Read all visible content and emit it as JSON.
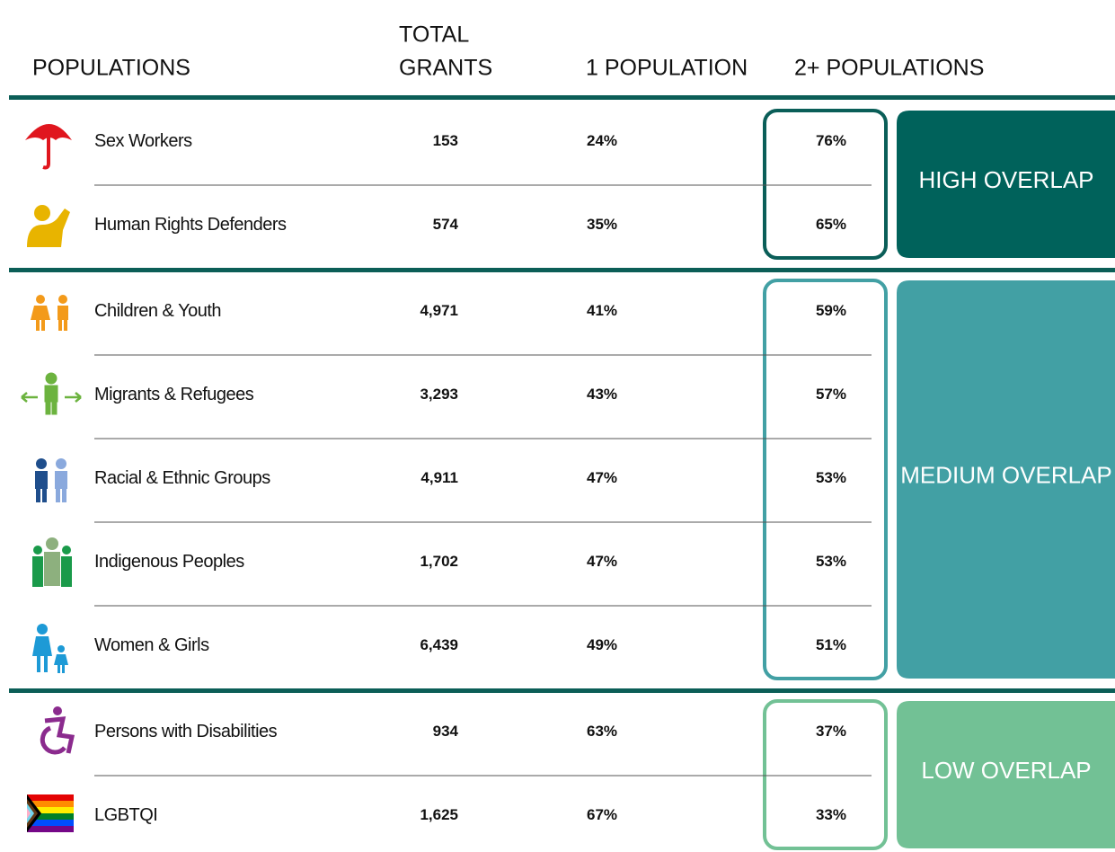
{
  "header": {
    "populations": "POPULATIONS",
    "total_grants": [
      "TOTAL",
      "GRANTS"
    ],
    "one_population": "1 POPULATION",
    "two_plus_populations": "2+ POPULATIONS"
  },
  "groups": [
    {
      "label": "HIGH OVERLAP",
      "rows": [
        {
          "name": "Sex Workers",
          "total": "153",
          "one": "24%",
          "two": "76%"
        },
        {
          "name": "Human Rights Defenders",
          "total": "574",
          "one": "35%",
          "two": "65%"
        }
      ]
    },
    {
      "label": "MEDIUM OVERLAP",
      "rows": [
        {
          "name": "Children & Youth",
          "total": "4,971",
          "one": "41%",
          "two": "59%"
        },
        {
          "name": "Migrants & Refugees",
          "total": "3,293",
          "one": "43%",
          "two": "57%"
        },
        {
          "name": "Racial & Ethnic Groups",
          "total": "4,911",
          "one": "47%",
          "two": "53%"
        },
        {
          "name": "Indigenous Peoples",
          "total": "1,702",
          "one": "47%",
          "two": "53%"
        },
        {
          "name": "Women & Girls",
          "total": "6,439",
          "one": "49%",
          "two": "51%"
        }
      ]
    },
    {
      "label": "LOW OVERLAP",
      "rows": [
        {
          "name": "Persons with Disabilities",
          "total": "934",
          "one": "63%",
          "two": "37%"
        },
        {
          "name": "LGBTQI",
          "total": "1,625",
          "one": "67%",
          "two": "33%"
        }
      ]
    }
  ]
}
